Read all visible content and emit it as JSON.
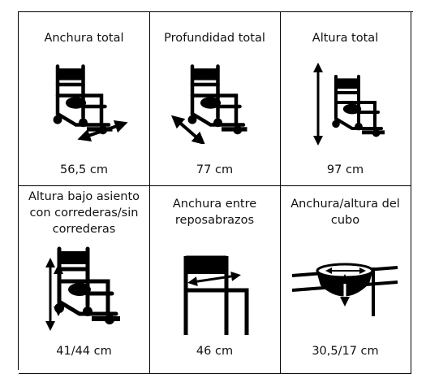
{
  "cells": [
    {
      "label": "Anchura total",
      "value": "56,5 cm"
    },
    {
      "label": "Profundidad total",
      "value": "77 cm"
    },
    {
      "label": "Altura total",
      "value": "97 cm"
    },
    {
      "label": "Altura bajo asiento con correderas/sin correderas",
      "value": "41/44 cm"
    },
    {
      "label": "Anchura entre reposabrazos",
      "value": "46 cm"
    },
    {
      "label": "Anchura/altura del cubo",
      "value": "30,5/17 cm"
    }
  ]
}
